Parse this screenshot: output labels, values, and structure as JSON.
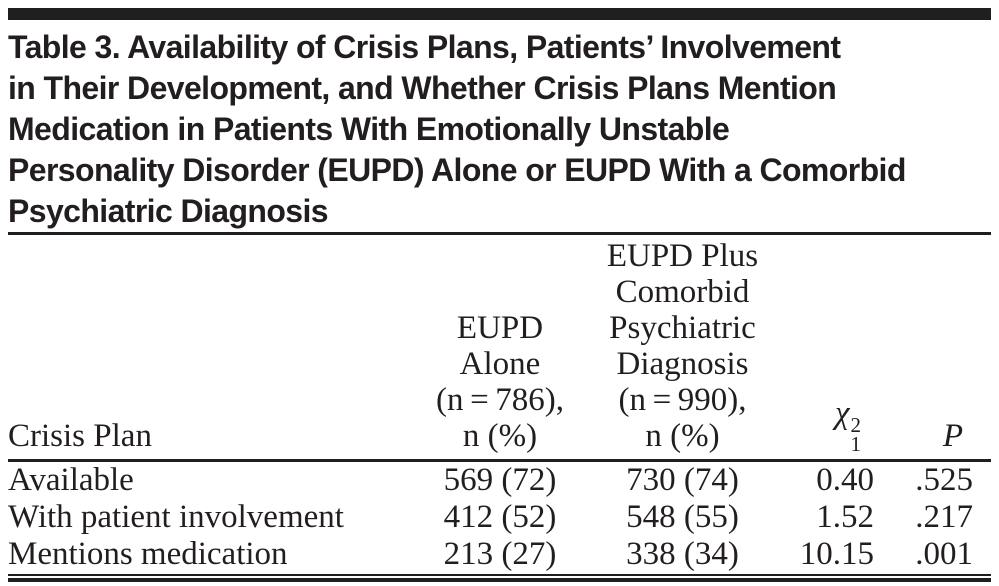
{
  "title": {
    "lines": [
      "Table 3. Availability of Crisis Plans, Patients’ Involvement",
      "in Their Development, and Whether Crisis Plans Mention",
      "Medication in Patients With Emotionally Unstable",
      "Personality Disorder (EUPD) Alone or EUPD With a Comorbid",
      "Psychiatric Diagnosis"
    ]
  },
  "table": {
    "row_header": "Crisis Plan",
    "col_eupd_alone": {
      "lines": [
        "EUPD",
        "Alone",
        "(n = 786),",
        "n (%)"
      ]
    },
    "col_eupd_comorbid": {
      "lines": [
        "EUPD Plus",
        "Comorbid",
        "Psychiatric",
        "Diagnosis",
        "(n = 990),",
        "n (%)"
      ]
    },
    "col_chi": {
      "base": "χ",
      "sup": "2",
      "sub": "1"
    },
    "col_p": "P",
    "rows": [
      {
        "label": "Available",
        "eupd_alone": "569 (72)",
        "eupd_comorbid": "730 (74)",
        "chi2": "0.40",
        "p": ".525"
      },
      {
        "label": "With patient involvement",
        "eupd_alone": "412 (52)",
        "eupd_comorbid": "548 (55)",
        "chi2": "1.52",
        "p": ".217"
      },
      {
        "label": "Mentions medication",
        "eupd_alone": "213 (27)",
        "eupd_comorbid": "338 (34)",
        "chi2": "10.15",
        "p": ".001"
      }
    ]
  },
  "colors": {
    "text": "#221e1f",
    "rule": "#221e1f",
    "top_bar": "#211e1f",
    "background": "#ffffff"
  }
}
